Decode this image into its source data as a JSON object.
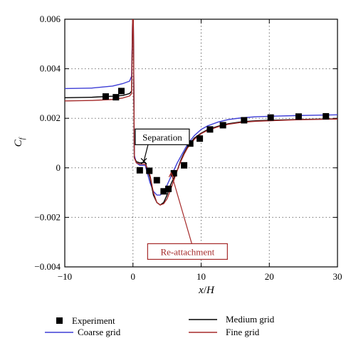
{
  "colors": {
    "experiment": "#000000",
    "coarse": "#3d3dd6",
    "medium": "#000000",
    "fine": "#a52a2a",
    "reattach_box": "#a52a2a"
  },
  "chart_data": {
    "type": "line",
    "xlabel_main": "x",
    "xlabel_sep": "/",
    "xlabel_var": "H",
    "ylabel_main": "C",
    "ylabel_sub": "f",
    "xlim": [
      -10,
      30
    ],
    "ylim": [
      -0.004,
      0.006
    ],
    "x_ticks": [
      -10,
      0,
      10,
      20,
      30
    ],
    "x_tick_labels": [
      "−10",
      "0",
      "10",
      "20",
      "30"
    ],
    "y_ticks": [
      -0.004,
      -0.002,
      0,
      0.002,
      0.004,
      0.006
    ],
    "y_tick_labels": [
      "−0.004",
      "−0.002",
      "0",
      "0.002",
      "0.004",
      "0.006"
    ],
    "grid": "dotted",
    "legend_placement": "bottom",
    "series": [
      {
        "name": "Experiment",
        "style": "markers",
        "x": [
          -4,
          -2.5,
          -1.7,
          1.0,
          2.4,
          3.5,
          4.5,
          5.2,
          6.0,
          7.5,
          8.4,
          9.8,
          11.3,
          13.2,
          16.3,
          20.2,
          24.3,
          28.3
        ],
        "y": [
          0.00288,
          0.00285,
          0.0031,
          -0.0001,
          -0.00012,
          -0.0005,
          -0.00095,
          -0.00085,
          -0.00022,
          0.0001,
          0.00098,
          0.00118,
          0.00155,
          0.00172,
          0.00192,
          0.00203,
          0.00207,
          0.00208
        ]
      },
      {
        "name": "Coarse grid",
        "style": "line",
        "x": [
          -10,
          -6,
          -3,
          -1.5,
          -0.5,
          -0.2,
          -0.05,
          0.05,
          0.2,
          0.5,
          1.0,
          1.8,
          2.5,
          3.0,
          3.5,
          4.0,
          4.5,
          5.0,
          5.5,
          6.0,
          6.5,
          7.0,
          7.5,
          8.0,
          9.0,
          10.0,
          11.0,
          12.5,
          14.0,
          16.0,
          18.0,
          20.0,
          24.0,
          28.0,
          30.0
        ],
        "y": [
          0.0032,
          0.00322,
          0.0033,
          0.0034,
          0.0035,
          0.0037,
          0.006,
          0.0061,
          0.0005,
          0.0002,
          0.0001,
          0.0001,
          -0.0006,
          -0.00095,
          -0.0011,
          -0.0011,
          -0.00095,
          -0.0007,
          -0.0004,
          -0.0001,
          0.0002,
          0.00045,
          0.0007,
          0.00095,
          0.0013,
          0.00155,
          0.0017,
          0.00185,
          0.00195,
          0.00202,
          0.00206,
          0.00208,
          0.00211,
          0.00213,
          0.00214
        ]
      },
      {
        "name": "Medium grid",
        "style": "line",
        "x": [
          -10,
          -6,
          -3,
          -1.5,
          -0.5,
          -0.2,
          -0.05,
          0.05,
          0.2,
          0.5,
          1.0,
          1.8,
          2.5,
          3.0,
          3.5,
          4.0,
          4.5,
          5.0,
          5.5,
          6.0,
          6.5,
          7.0,
          7.5,
          8.0,
          9.0,
          10.0,
          11.0,
          12.5,
          14.0,
          16.0,
          18.0,
          20.0,
          24.0,
          28.0,
          30.0
        ],
        "y": [
          0.00283,
          0.00285,
          0.00289,
          0.00292,
          0.003,
          0.0031,
          0.006,
          0.0061,
          0.0004,
          0.00025,
          0.0002,
          0.00022,
          -0.0004,
          -0.0011,
          -0.0014,
          -0.0015,
          -0.0014,
          -0.0011,
          -0.0007,
          -0.0004,
          -0.0001,
          0.0003,
          0.0006,
          0.00085,
          0.0012,
          0.0014,
          0.00155,
          0.00168,
          0.00178,
          0.00186,
          0.0019,
          0.00192,
          0.00195,
          0.00197,
          0.00198
        ]
      },
      {
        "name": "Fine grid",
        "style": "line",
        "x": [
          -10,
          -6,
          -3,
          -1.5,
          -0.5,
          -0.2,
          -0.05,
          0.05,
          0.2,
          0.5,
          1.0,
          1.8,
          2.5,
          3.0,
          3.5,
          4.0,
          4.5,
          5.0,
          5.5,
          6.0,
          6.5,
          7.0,
          7.5,
          8.0,
          9.0,
          10.0,
          11.0,
          12.5,
          14.0,
          16.0,
          18.0,
          20.0,
          24.0,
          28.0,
          30.0
        ],
        "y": [
          0.0027,
          0.00272,
          0.00276,
          0.00282,
          0.0029,
          0.003,
          0.006,
          0.0061,
          0.0004,
          0.0002,
          0.00015,
          0.00015,
          -0.0003,
          -0.001,
          -0.0014,
          -0.0015,
          -0.00145,
          -0.00125,
          -0.0009,
          -0.0005,
          -0.0001,
          0.00025,
          0.00055,
          0.0008,
          0.00115,
          0.00138,
          0.00152,
          0.00166,
          0.00176,
          0.00184,
          0.00188,
          0.0019,
          0.00194,
          0.00196,
          0.00197
        ]
      }
    ],
    "annotations": [
      {
        "text": "Separation",
        "target_x": 1.6,
        "target_y": 0.00027,
        "label_x": 4.3,
        "label_y": 0.00125,
        "boxed": true
      },
      {
        "text": "Re-attachment",
        "target_x": 5.6,
        "target_y": -0.0002,
        "label_x": 8.0,
        "label_y": -0.00338,
        "boxed": true
      }
    ]
  }
}
